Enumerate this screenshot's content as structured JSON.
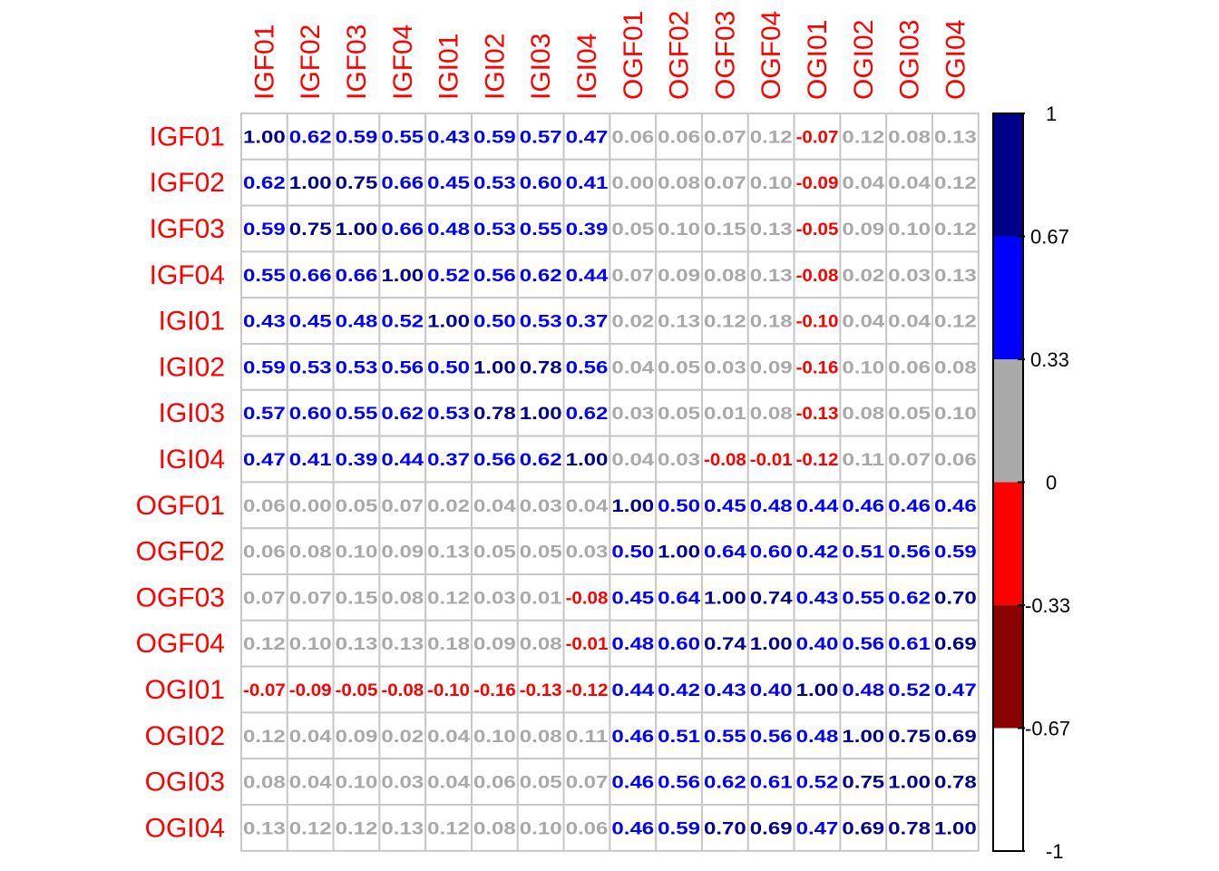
{
  "chart_data": {
    "type": "heatmap",
    "title": "",
    "rows": [
      "IGF01",
      "IGF02",
      "IGF03",
      "IGF04",
      "IGI01",
      "IGI02",
      "IGI03",
      "IGI04",
      "OGF01",
      "OGF02",
      "OGF03",
      "OGF04",
      "OGI01",
      "OGI02",
      "OGI03",
      "OGI04"
    ],
    "cols": [
      "IGF01",
      "IGF02",
      "IGF03",
      "IGF04",
      "IGI01",
      "IGI02",
      "IGI03",
      "IGI04",
      "OGF01",
      "OGF02",
      "OGF03",
      "OGF04",
      "OGI01",
      "OGI02",
      "OGI03",
      "OGI04"
    ],
    "values": [
      [
        "1.00",
        "0.62",
        "0.59",
        "0.55",
        "0.43",
        "0.59",
        "0.57",
        "0.47",
        "0.06",
        "0.06",
        "0.07",
        "0.12",
        "-0.07",
        "0.12",
        "0.08",
        "0.13"
      ],
      [
        "0.62",
        "1.00",
        "0.75",
        "0.66",
        "0.45",
        "0.53",
        "0.60",
        "0.41",
        "0.00",
        "0.08",
        "0.07",
        "0.10",
        "-0.09",
        "0.04",
        "0.04",
        "0.12"
      ],
      [
        "0.59",
        "0.75",
        "1.00",
        "0.66",
        "0.48",
        "0.53",
        "0.55",
        "0.39",
        "0.05",
        "0.10",
        "0.15",
        "0.13",
        "-0.05",
        "0.09",
        "0.10",
        "0.12"
      ],
      [
        "0.55",
        "0.66",
        "0.66",
        "1.00",
        "0.52",
        "0.56",
        "0.62",
        "0.44",
        "0.07",
        "0.09",
        "0.08",
        "0.13",
        "-0.08",
        "0.02",
        "0.03",
        "0.13"
      ],
      [
        "0.43",
        "0.45",
        "0.48",
        "0.52",
        "1.00",
        "0.50",
        "0.53",
        "0.37",
        "0.02",
        "0.13",
        "0.12",
        "0.18",
        "-0.10",
        "0.04",
        "0.04",
        "0.12"
      ],
      [
        "0.59",
        "0.53",
        "0.53",
        "0.56",
        "0.50",
        "1.00",
        "0.78",
        "0.56",
        "0.04",
        "0.05",
        "0.03",
        "0.09",
        "-0.16",
        "0.10",
        "0.06",
        "0.08"
      ],
      [
        "0.57",
        "0.60",
        "0.55",
        "0.62",
        "0.53",
        "0.78",
        "1.00",
        "0.62",
        "0.03",
        "0.05",
        "0.01",
        "0.08",
        "-0.13",
        "0.08",
        "0.05",
        "0.10"
      ],
      [
        "0.47",
        "0.41",
        "0.39",
        "0.44",
        "0.37",
        "0.56",
        "0.62",
        "1.00",
        "0.04",
        "0.03",
        "-0.08",
        "-0.01",
        "-0.12",
        "0.11",
        "0.07",
        "0.06"
      ],
      [
        "0.06",
        "0.00",
        "0.05",
        "0.07",
        "0.02",
        "0.04",
        "0.03",
        "0.04",
        "1.00",
        "0.50",
        "0.45",
        "0.48",
        "0.44",
        "0.46",
        "0.46",
        "0.46"
      ],
      [
        "0.06",
        "0.08",
        "0.10",
        "0.09",
        "0.13",
        "0.05",
        "0.05",
        "0.03",
        "0.50",
        "1.00",
        "0.64",
        "0.60",
        "0.42",
        "0.51",
        "0.56",
        "0.59"
      ],
      [
        "0.07",
        "0.07",
        "0.15",
        "0.08",
        "0.12",
        "0.03",
        "0.01",
        "-0.08",
        "0.45",
        "0.64",
        "1.00",
        "0.74",
        "0.43",
        "0.55",
        "0.62",
        "0.70"
      ],
      [
        "0.12",
        "0.10",
        "0.13",
        "0.13",
        "0.18",
        "0.09",
        "0.08",
        "-0.01",
        "0.48",
        "0.60",
        "0.74",
        "1.00",
        "0.40",
        "0.56",
        "0.61",
        "0.69"
      ],
      [
        "-0.07",
        "-0.09",
        "-0.05",
        "-0.08",
        "-0.10",
        "-0.16",
        "-0.13",
        "-0.12",
        "0.44",
        "0.42",
        "0.43",
        "0.40",
        "1.00",
        "0.48",
        "0.52",
        "0.47"
      ],
      [
        "0.12",
        "0.04",
        "0.09",
        "0.02",
        "0.04",
        "0.10",
        "0.08",
        "0.11",
        "0.46",
        "0.51",
        "0.55",
        "0.56",
        "0.48",
        "1.00",
        "0.75",
        "0.69"
      ],
      [
        "0.08",
        "0.04",
        "0.10",
        "0.03",
        "0.04",
        "0.06",
        "0.05",
        "0.07",
        "0.46",
        "0.56",
        "0.62",
        "0.61",
        "0.52",
        "0.75",
        "1.00",
        "0.78"
      ],
      [
        "0.13",
        "0.12",
        "0.12",
        "0.13",
        "0.12",
        "0.08",
        "0.10",
        "0.06",
        "0.46",
        "0.59",
        "0.70",
        "0.69",
        "0.47",
        "0.69",
        "0.78",
        "1.00"
      ]
    ],
    "value_range": [
      -1,
      1
    ],
    "label_color": "#ff0000",
    "grid_color": "#c8c8c8",
    "legend": {
      "placement": "right",
      "ticks": [
        "1",
        "0.67",
        "0.33",
        "0",
        "-0.33",
        "-0.67",
        "-1"
      ],
      "bins": [
        {
          "from": 0.67,
          "to": 1.0,
          "color": "#00008b"
        },
        {
          "from": 0.33,
          "to": 0.67,
          "color": "#0000ff"
        },
        {
          "from": 0.0,
          "to": 0.33,
          "color": "#a9a9a9"
        },
        {
          "from": -0.33,
          "to": 0.0,
          "color": "#ff0000"
        },
        {
          "from": -0.67,
          "to": -0.33,
          "color": "#8b0000"
        },
        {
          "from": -1.0,
          "to": -0.67,
          "color": "#ffffff"
        }
      ]
    }
  }
}
